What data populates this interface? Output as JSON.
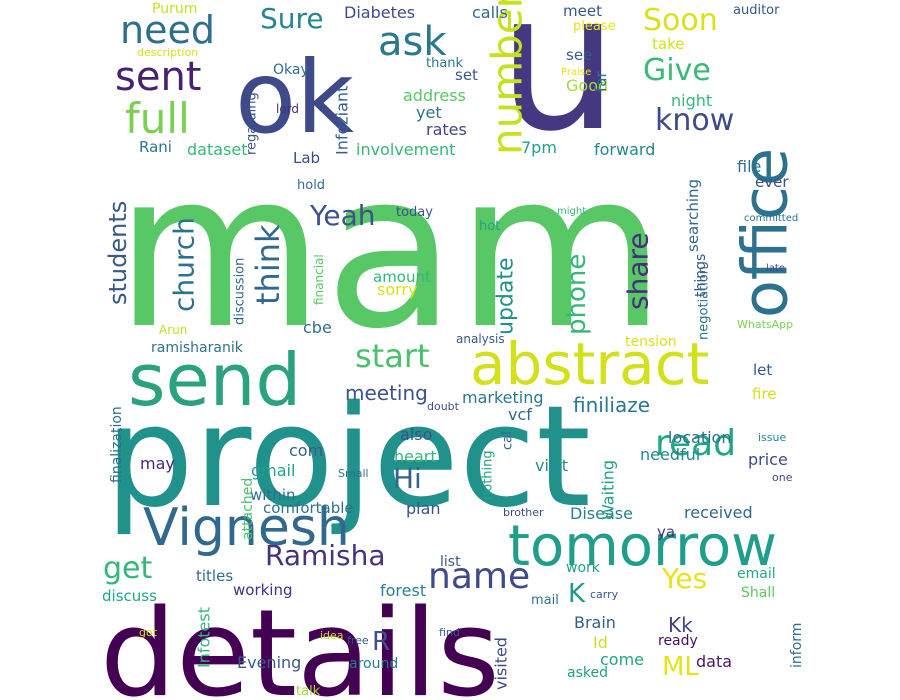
{
  "word_cloud": {
    "words": [
      {
        "text": "mam",
        "color": "#58c765"
      },
      {
        "text": "project",
        "color": "#21918c"
      },
      {
        "text": "details",
        "color": "#440154"
      },
      {
        "text": "u",
        "color": "#453781"
      },
      {
        "text": "ok",
        "color": "#3e4a89"
      },
      {
        "text": "office",
        "color": "#2c728e"
      },
      {
        "text": "send",
        "color": "#2aa17f"
      },
      {
        "text": "abstract",
        "color": "#d2e11b"
      },
      {
        "text": "tomorrow",
        "color": "#1f9e89"
      },
      {
        "text": "Vignesh",
        "color": "#31688e"
      },
      {
        "text": "number",
        "color": "#c8e020"
      },
      {
        "text": "sent",
        "color": "#482173"
      },
      {
        "text": "need",
        "color": "#2e6e8e"
      },
      {
        "text": "ask",
        "color": "#2a788e"
      },
      {
        "text": "full",
        "color": "#7ad151"
      },
      {
        "text": "name",
        "color": "#3e4a89"
      },
      {
        "text": "read",
        "color": "#22a785"
      },
      {
        "text": "Ramisha",
        "color": "#46327e"
      },
      {
        "text": "start",
        "color": "#4ac16d"
      },
      {
        "text": "Yes",
        "color": "#e5e419"
      },
      {
        "text": "get",
        "color": "#35b779"
      },
      {
        "text": "Soon",
        "color": "#d8e219"
      },
      {
        "text": "Give",
        "color": "#38b977"
      },
      {
        "text": "know",
        "color": "#3e4a89"
      },
      {
        "text": "Sure",
        "color": "#24878e"
      },
      {
        "text": "Yeah",
        "color": "#3b528b"
      },
      {
        "text": "think",
        "color": "#31688e"
      },
      {
        "text": "church",
        "color": "#2c728e"
      },
      {
        "text": "students",
        "color": "#38588c"
      },
      {
        "text": "phone",
        "color": "#35b779"
      },
      {
        "text": "share",
        "color": "#472f7d"
      },
      {
        "text": "update",
        "color": "#21918c"
      },
      {
        "text": "Hi",
        "color": "#33638d"
      },
      {
        "text": "meeting",
        "color": "#3b528b"
      },
      {
        "text": "finiliaze",
        "color": "#2a788e"
      },
      {
        "text": "ML",
        "color": "#e5e419"
      },
      {
        "text": "Kk",
        "color": "#414487"
      },
      {
        "text": "K",
        "color": "#1f998a"
      },
      {
        "text": "R",
        "color": "#3b528b"
      },
      {
        "text": "Infotest",
        "color": "#35b779"
      },
      {
        "text": "Evening",
        "color": "#38588c"
      },
      {
        "text": "visited",
        "color": "#3e4a89"
      },
      {
        "text": "working",
        "color": "#46327e"
      },
      {
        "text": "forest",
        "color": "#25848e"
      },
      {
        "text": "Brain",
        "color": "#365c8d"
      },
      {
        "text": "come",
        "color": "#22a785"
      },
      {
        "text": "data",
        "color": "#48186a"
      },
      {
        "text": "inform",
        "color": "#2e6e8e"
      },
      {
        "text": "asked",
        "color": "#1fa187"
      },
      {
        "text": "around",
        "color": "#2a788e"
      },
      {
        "text": "Id",
        "color": "#c8e020"
      },
      {
        "text": "ready",
        "color": "#471063"
      },
      {
        "text": "email",
        "color": "#22a785"
      },
      {
        "text": "Shall",
        "color": "#5ec962"
      },
      {
        "text": "mail",
        "color": "#2c728e"
      },
      {
        "text": "work",
        "color": "#1f9e89"
      },
      {
        "text": "list",
        "color": "#38588c"
      },
      {
        "text": "plan",
        "color": "#3b528b"
      },
      {
        "text": "Disease",
        "color": "#26818e"
      },
      {
        "text": "received",
        "color": "#31688e"
      },
      {
        "text": "ya",
        "color": "#46327e"
      },
      {
        "text": "comfortable",
        "color": "#2c728e"
      },
      {
        "text": "within",
        "color": "#2e6e8e"
      },
      {
        "text": "gmail",
        "color": "#1fa187"
      },
      {
        "text": "attached",
        "color": "#4ac16d"
      },
      {
        "text": "com",
        "color": "#355f8d"
      },
      {
        "text": "may",
        "color": "#482878"
      },
      {
        "text": "finalization",
        "color": "#2e6e8e"
      },
      {
        "text": "heart",
        "color": "#35b779"
      },
      {
        "text": "also",
        "color": "#3b528b"
      },
      {
        "text": "nothing",
        "color": "#20a386"
      },
      {
        "text": "cal",
        "color": "#31688e"
      },
      {
        "text": "Waiting",
        "color": "#1fa187"
      },
      {
        "text": "visit",
        "color": "#21918c"
      },
      {
        "text": "needful",
        "color": "#24878e"
      },
      {
        "text": "location",
        "color": "#2c728e"
      },
      {
        "text": "price",
        "color": "#3e4a89"
      },
      {
        "text": "fire",
        "color": "#d2e11b"
      },
      {
        "text": "vcf",
        "color": "#31688e"
      },
      {
        "text": "marketing",
        "color": "#2a788e"
      },
      {
        "text": "let",
        "color": "#38588c"
      },
      {
        "text": "ramisharanik",
        "color": "#2c728e"
      },
      {
        "text": "cbe",
        "color": "#2e6e8e"
      },
      {
        "text": "sorry",
        "color": "#d8e219"
      },
      {
        "text": "amount",
        "color": "#35b779"
      },
      {
        "text": "hot",
        "color": "#20a386"
      },
      {
        "text": "today",
        "color": "#3b528b"
      },
      {
        "text": "hold",
        "color": "#2e6e8e"
      },
      {
        "text": "Lab",
        "color": "#3e4a89"
      },
      {
        "text": "Rani",
        "color": "#2a788e"
      },
      {
        "text": "dataset",
        "color": "#35b779"
      },
      {
        "text": "Infoziant",
        "color": "#355f8d"
      },
      {
        "text": "involvement",
        "color": "#35b779"
      },
      {
        "text": "7pm",
        "color": "#1fa187"
      },
      {
        "text": "forward",
        "color": "#24878e"
      },
      {
        "text": "rates",
        "color": "#414487"
      },
      {
        "text": "yet",
        "color": "#2c728e"
      },
      {
        "text": "address",
        "color": "#58c765"
      },
      {
        "text": "set",
        "color": "#38588c"
      },
      {
        "text": "see",
        "color": "#365c8d"
      },
      {
        "text": "Good",
        "color": "#a5db36"
      },
      {
        "text": "far",
        "color": "#2c728e"
      },
      {
        "text": "take",
        "color": "#d2e11b"
      },
      {
        "text": "night",
        "color": "#35b779"
      },
      {
        "text": "Diabetes",
        "color": "#3e4a89"
      },
      {
        "text": "calls",
        "color": "#31688e"
      },
      {
        "text": "meet",
        "color": "#38588c"
      },
      {
        "text": "please",
        "color": "#e5e419"
      },
      {
        "text": "auditor",
        "color": "#38588c"
      },
      {
        "text": "thank",
        "color": "#2a788e"
      },
      {
        "text": "Okay",
        "color": "#2e6e8e"
      },
      {
        "text": "regarding",
        "color": "#3b528b"
      },
      {
        "text": "Purum",
        "color": "#c8e020"
      },
      {
        "text": "description",
        "color": "#d8e219"
      },
      {
        "text": "Praise",
        "color": "#e5e419"
      },
      {
        "text": "lord",
        "color": "#472f7d"
      },
      {
        "text": "negotiation",
        "color": "#2c728e"
      },
      {
        "text": "searching",
        "color": "#31688e"
      },
      {
        "text": "things",
        "color": "#38588c"
      },
      {
        "text": "file",
        "color": "#2e6e8e"
      },
      {
        "text": "ever",
        "color": "#3b528b"
      },
      {
        "text": "committed",
        "color": "#2c728e"
      },
      {
        "text": "might",
        "color": "#38b977"
      },
      {
        "text": "late",
        "color": "#3e4a89"
      },
      {
        "text": "WhatsApp",
        "color": "#7ad151"
      },
      {
        "text": "tension",
        "color": "#d8e219"
      },
      {
        "text": "analysis",
        "color": "#38588c"
      },
      {
        "text": "discussion",
        "color": "#31688e"
      },
      {
        "text": "financial",
        "color": "#58c765"
      },
      {
        "text": "Arun",
        "color": "#bddf26"
      },
      {
        "text": "doubt",
        "color": "#3b528b"
      },
      {
        "text": "issue",
        "color": "#24878e"
      },
      {
        "text": "one",
        "color": "#3e4a89"
      },
      {
        "text": "Small",
        "color": "#2c728e"
      },
      {
        "text": "brother",
        "color": "#3e4a89"
      },
      {
        "text": "carry",
        "color": "#38588c"
      },
      {
        "text": "titles",
        "color": "#2e6e8e"
      },
      {
        "text": "discuss",
        "color": "#22a785"
      },
      {
        "text": "got",
        "color": "#d2e11b"
      },
      {
        "text": "idea",
        "color": "#c8e020"
      },
      {
        "text": "free",
        "color": "#3b528b"
      },
      {
        "text": "find",
        "color": "#38588c"
      },
      {
        "text": "talk",
        "color": "#a5db36"
      }
    ]
  }
}
